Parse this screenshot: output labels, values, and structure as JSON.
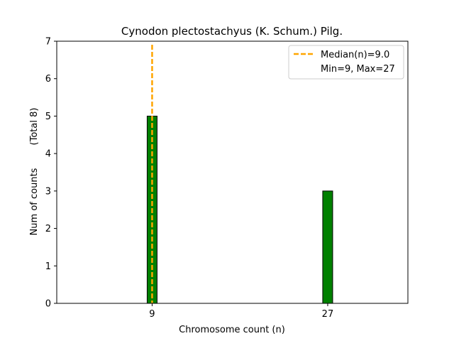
{
  "chart_data": {
    "type": "bar",
    "title": "Cynodon plectostachyus (K. Schum.) Pilg.",
    "xlabel": "Chromosome count (n)",
    "ylabel": "Num of counts",
    "ylabel_total": "(Total 8)",
    "x_ticks": [
      "9",
      "27"
    ],
    "y_ticks": [
      "0",
      "1",
      "2",
      "3",
      "4",
      "5",
      "6",
      "7"
    ],
    "ylim": [
      0,
      7
    ],
    "xlim": [
      0,
      36
    ],
    "bars": [
      {
        "x": 9,
        "value": 5
      },
      {
        "x": 27,
        "value": 3
      }
    ],
    "median": {
      "value": 9.0,
      "label": "Median(n)=9.0"
    },
    "legend": {
      "placement": "top-right",
      "entries": [
        "Median(n)=9.0",
        "Min=9, Max=27"
      ]
    },
    "grid": false,
    "colors": {
      "bar_fill": "#008000",
      "bar_edge": "#000000",
      "median_line": "#FFA500"
    }
  }
}
